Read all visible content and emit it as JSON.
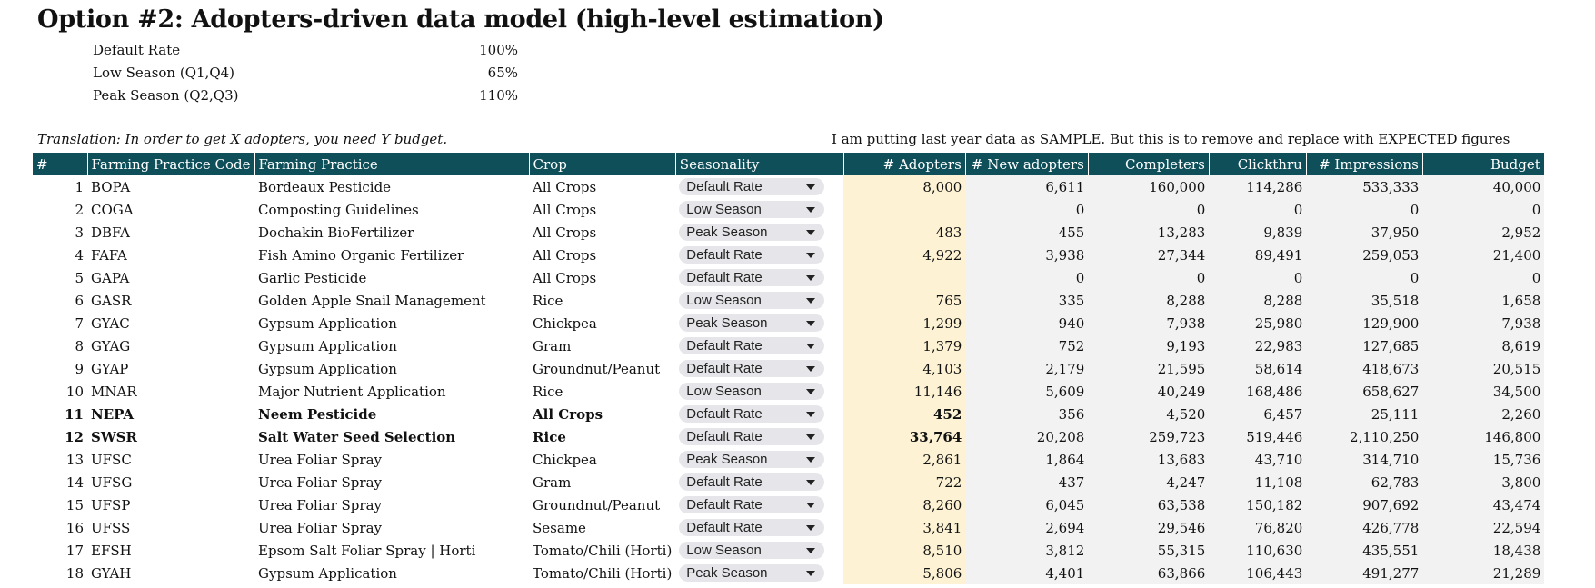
{
  "title": "Option #2: Adopters-driven data model (high-level estimation)",
  "rates": [
    {
      "label": "Default Rate",
      "value": "100%"
    },
    {
      "label": "Low Season (Q1,Q4)",
      "value": "65%"
    },
    {
      "label": "Peak Season (Q2,Q3)",
      "value": "110%"
    }
  ],
  "note_left": "Translation: In order to get X adopters, you need Y budget.",
  "note_right": "I am putting last year data as SAMPLE. But this is to remove and replace with EXPECTED figures",
  "columns": [
    "#",
    "Farming Practice Code",
    "Farming Practice",
    "Crop",
    "Seasonality",
    "# Adopters",
    "# New adopters",
    "Completers",
    "Clickthru",
    "# Impressions",
    "Budget"
  ],
  "rows": [
    {
      "n": "1",
      "code": "BOPA",
      "practice": "Bordeaux Pesticide",
      "crop": "All Crops",
      "season": "Default Rate",
      "adopters": "8,000",
      "new": "6,611",
      "completers": "160,000",
      "clickthru": "114,286",
      "impressions": "533,333",
      "budget": "40,000",
      "bold": false
    },
    {
      "n": "2",
      "code": "COGA",
      "practice": "Composting Guidelines",
      "crop": "All Crops",
      "season": "Low Season",
      "adopters": "",
      "new": "0",
      "completers": "0",
      "clickthru": "0",
      "impressions": "0",
      "budget": "0",
      "bold": false
    },
    {
      "n": "3",
      "code": "DBFA",
      "practice": "Dochakin BioFertilizer",
      "crop": "All Crops",
      "season": "Peak Season",
      "adopters": "483",
      "new": "455",
      "completers": "13,283",
      "clickthru": "9,839",
      "impressions": "37,950",
      "budget": "2,952",
      "bold": false
    },
    {
      "n": "4",
      "code": "FAFA",
      "practice": "Fish Amino Organic Fertilizer",
      "crop": "All Crops",
      "season": "Default Rate",
      "adopters": "4,922",
      "new": "3,938",
      "completers": "27,344",
      "clickthru": "89,491",
      "impressions": "259,053",
      "budget": "21,400",
      "bold": false
    },
    {
      "n": "5",
      "code": "GAPA",
      "practice": "Garlic Pesticide",
      "crop": "All Crops",
      "season": "Default Rate",
      "adopters": "",
      "new": "0",
      "completers": "0",
      "clickthru": "0",
      "impressions": "0",
      "budget": "0",
      "bold": false
    },
    {
      "n": "6",
      "code": "GASR",
      "practice": "Golden Apple Snail Management",
      "crop": "Rice",
      "season": "Low Season",
      "adopters": "765",
      "new": "335",
      "completers": "8,288",
      "clickthru": "8,288",
      "impressions": "35,518",
      "budget": "1,658",
      "bold": false
    },
    {
      "n": "7",
      "code": "GYAC",
      "practice": "Gypsum Application",
      "crop": "Chickpea",
      "season": "Peak Season",
      "adopters": "1,299",
      "new": "940",
      "completers": "7,938",
      "clickthru": "25,980",
      "impressions": "129,900",
      "budget": "7,938",
      "bold": false
    },
    {
      "n": "8",
      "code": "GYAG",
      "practice": "Gypsum Application",
      "crop": "Gram",
      "season": "Default Rate",
      "adopters": "1,379",
      "new": "752",
      "completers": "9,193",
      "clickthru": "22,983",
      "impressions": "127,685",
      "budget": "8,619",
      "bold": false
    },
    {
      "n": "9",
      "code": "GYAP",
      "practice": "Gypsum Application",
      "crop": "Groundnut/Peanut",
      "season": "Default Rate",
      "adopters": "4,103",
      "new": "2,179",
      "completers": "21,595",
      "clickthru": "58,614",
      "impressions": "418,673",
      "budget": "20,515",
      "bold": false
    },
    {
      "n": "10",
      "code": "MNAR",
      "practice": "Major Nutrient Application",
      "crop": "Rice",
      "season": "Low Season",
      "adopters": "11,146",
      "new": "5,609",
      "completers": "40,249",
      "clickthru": "168,486",
      "impressions": "658,627",
      "budget": "34,500",
      "bold": false
    },
    {
      "n": "11",
      "code": "NEPA",
      "practice": "Neem Pesticide",
      "crop": "All Crops",
      "season": "Default Rate",
      "adopters": "452",
      "new": "356",
      "completers": "4,520",
      "clickthru": "6,457",
      "impressions": "25,111",
      "budget": "2,260",
      "bold": true
    },
    {
      "n": "12",
      "code": "SWSR",
      "practice": "Salt Water Seed Selection",
      "crop": "Rice",
      "season": "Default Rate",
      "adopters": "33,764",
      "new": "20,208",
      "completers": "259,723",
      "clickthru": "519,446",
      "impressions": "2,110,250",
      "budget": "146,800",
      "bold": true
    },
    {
      "n": "13",
      "code": "UFSC",
      "practice": "Urea Foliar Spray",
      "crop": "Chickpea",
      "season": "Peak Season",
      "adopters": "2,861",
      "new": "1,864",
      "completers": "13,683",
      "clickthru": "43,710",
      "impressions": "314,710",
      "budget": "15,736",
      "bold": false
    },
    {
      "n": "14",
      "code": "UFSG",
      "practice": "Urea Foliar Spray",
      "crop": "Gram",
      "season": "Default Rate",
      "adopters": "722",
      "new": "437",
      "completers": "4,247",
      "clickthru": "11,108",
      "impressions": "62,783",
      "budget": "3,800",
      "bold": false
    },
    {
      "n": "15",
      "code": "UFSP",
      "practice": "Urea Foliar Spray",
      "crop": "Groundnut/Peanut",
      "season": "Default Rate",
      "adopters": "8,260",
      "new": "6,045",
      "completers": "63,538",
      "clickthru": "150,182",
      "impressions": "907,692",
      "budget": "43,474",
      "bold": false
    },
    {
      "n": "16",
      "code": "UFSS",
      "practice": "Urea Foliar Spray",
      "crop": "Sesame",
      "season": "Default Rate",
      "adopters": "3,841",
      "new": "2,694",
      "completers": "29,546",
      "clickthru": "76,820",
      "impressions": "426,778",
      "budget": "22,594",
      "bold": false
    },
    {
      "n": "17",
      "code": "EFSH",
      "practice": "Epsom Salt Foliar Spray | Horti",
      "crop": "Tomato/Chili (Horti)",
      "season": "Low Season",
      "adopters": "8,510",
      "new": "3,812",
      "completers": "55,315",
      "clickthru": "110,630",
      "impressions": "435,551",
      "budget": "18,438",
      "bold": false
    },
    {
      "n": "18",
      "code": "GYAH",
      "practice": "Gypsum Application",
      "crop": "Tomato/Chili (Horti)",
      "season": "Peak Season",
      "adopters": "5,806",
      "new": "4,401",
      "completers": "63,866",
      "clickthru": "106,443",
      "impressions": "491,277",
      "budget": "21,289",
      "bold": false
    }
  ]
}
